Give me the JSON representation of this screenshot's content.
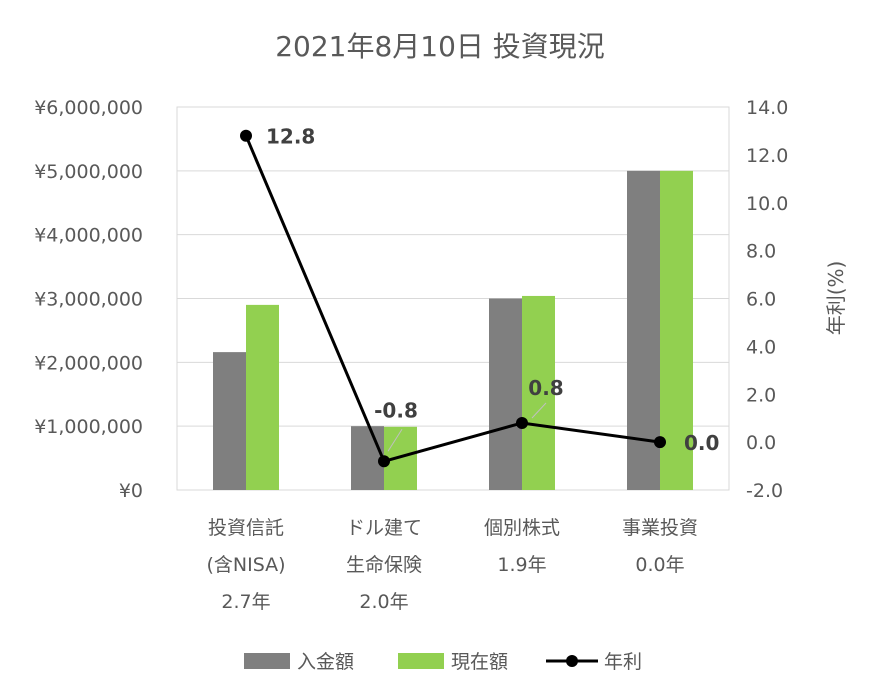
{
  "chart_data": {
    "type": "bar",
    "title": "2021年8月10日 投資現況",
    "categories": [
      {
        "lines": [
          "投資信託",
          "(含NISA)",
          "2.7年"
        ]
      },
      {
        "lines": [
          "ドル建て",
          "生命保険",
          "2.0年"
        ]
      },
      {
        "lines": [
          "個別株式",
          "1.9年"
        ]
      },
      {
        "lines": [
          "事業投資",
          "0.0年"
        ]
      }
    ],
    "series": [
      {
        "name": "入金額",
        "type": "bar",
        "axis": "left",
        "color": "#7f7f7f",
        "values": [
          2160000,
          1000000,
          3000000,
          5000000
        ]
      },
      {
        "name": "現在額",
        "type": "bar",
        "axis": "left",
        "color": "#92d050",
        "values": [
          2900000,
          990000,
          3040000,
          5000000
        ]
      },
      {
        "name": "年利",
        "type": "line",
        "axis": "right",
        "color": "#000000",
        "values": [
          12.8,
          -0.8,
          0.8,
          0.0
        ],
        "labels": [
          "12.8",
          "-0.8",
          "0.8",
          "0.0"
        ]
      }
    ],
    "left_axis": {
      "min": 0,
      "max": 6000000,
      "ticks": [
        "¥0",
        "¥1,000,000",
        "¥2,000,000",
        "¥3,000,000",
        "¥4,000,000",
        "¥5,000,000",
        "¥6,000,000"
      ]
    },
    "right_axis": {
      "min": -2.0,
      "max": 14.0,
      "label": "年利(%)",
      "ticks": [
        "-2.0",
        "0.0",
        "2.0",
        "4.0",
        "6.0",
        "8.0",
        "10.0",
        "12.0",
        "14.0"
      ]
    },
    "gridlines": true,
    "legend": "bottom-center"
  }
}
